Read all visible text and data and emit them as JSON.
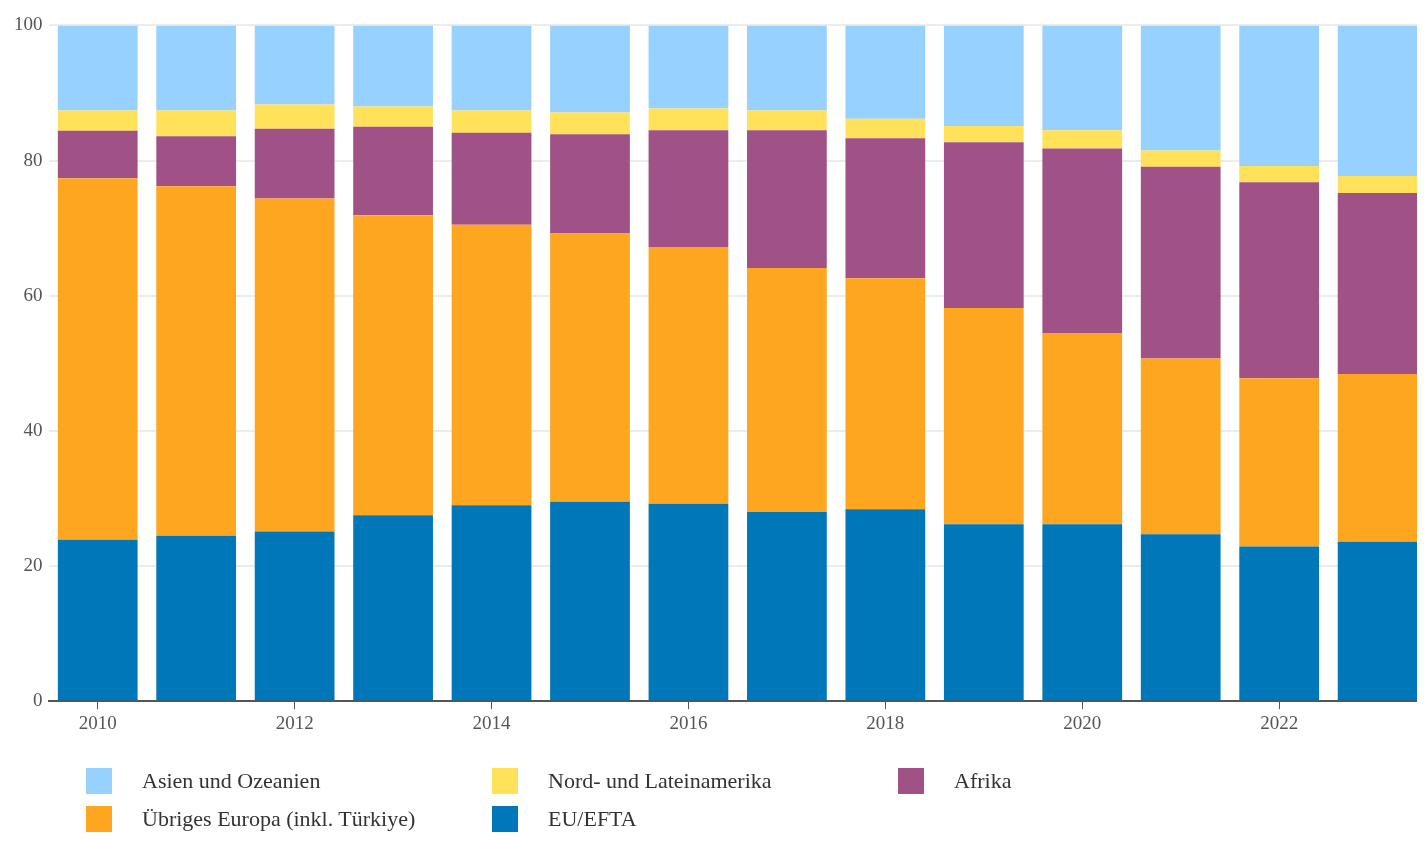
{
  "chart_data": {
    "type": "bar",
    "stacked": true,
    "x": [
      2010,
      2011,
      2012,
      2013,
      2014,
      2015,
      2016,
      2017,
      2018,
      2019,
      2020,
      2021,
      2022,
      2023
    ],
    "xlim": [
      2009.5,
      2023.4
    ],
    "xticks": [
      2010,
      2012,
      2014,
      2016,
      2018,
      2020,
      2022
    ],
    "ylim": [
      0,
      100
    ],
    "yticks": [
      0,
      20,
      40,
      60,
      80,
      100
    ],
    "grid": "y",
    "legend": "bottom",
    "series": [
      {
        "name": "EU/EFTA",
        "color": "#0077b8",
        "values": [
          23.9,
          24.5,
          25.1,
          27.5,
          29.0,
          29.5,
          29.2,
          28.0,
          28.4,
          26.2,
          26.2,
          24.7,
          22.9,
          23.6
        ]
      },
      {
        "name": "Übriges Europa (inkl. Türkiye)",
        "color": "#ffa620",
        "values": [
          53.5,
          51.7,
          49.3,
          44.4,
          41.5,
          39.7,
          38.0,
          36.1,
          34.2,
          32.0,
          28.2,
          26.0,
          24.9,
          24.8
        ]
      },
      {
        "name": "Afrika",
        "color": "#a05286",
        "values": [
          7.0,
          7.4,
          10.3,
          13.1,
          13.6,
          14.7,
          17.3,
          20.4,
          20.7,
          24.5,
          27.4,
          28.4,
          29.0,
          26.8
        ]
      },
      {
        "name": "Nord- und Lateinamerika",
        "color": "#ffe15a",
        "values": [
          3.0,
          3.8,
          3.6,
          3.0,
          3.3,
          3.2,
          3.2,
          2.9,
          2.9,
          2.4,
          2.7,
          2.4,
          2.4,
          2.5
        ]
      },
      {
        "name": "Asien und Ozeanien",
        "color": "#96d1ff",
        "values": [
          12.6,
          12.6,
          11.7,
          12.0,
          12.6,
          12.9,
          12.3,
          12.6,
          13.8,
          14.9,
          15.5,
          18.5,
          20.8,
          22.3
        ]
      }
    ]
  }
}
